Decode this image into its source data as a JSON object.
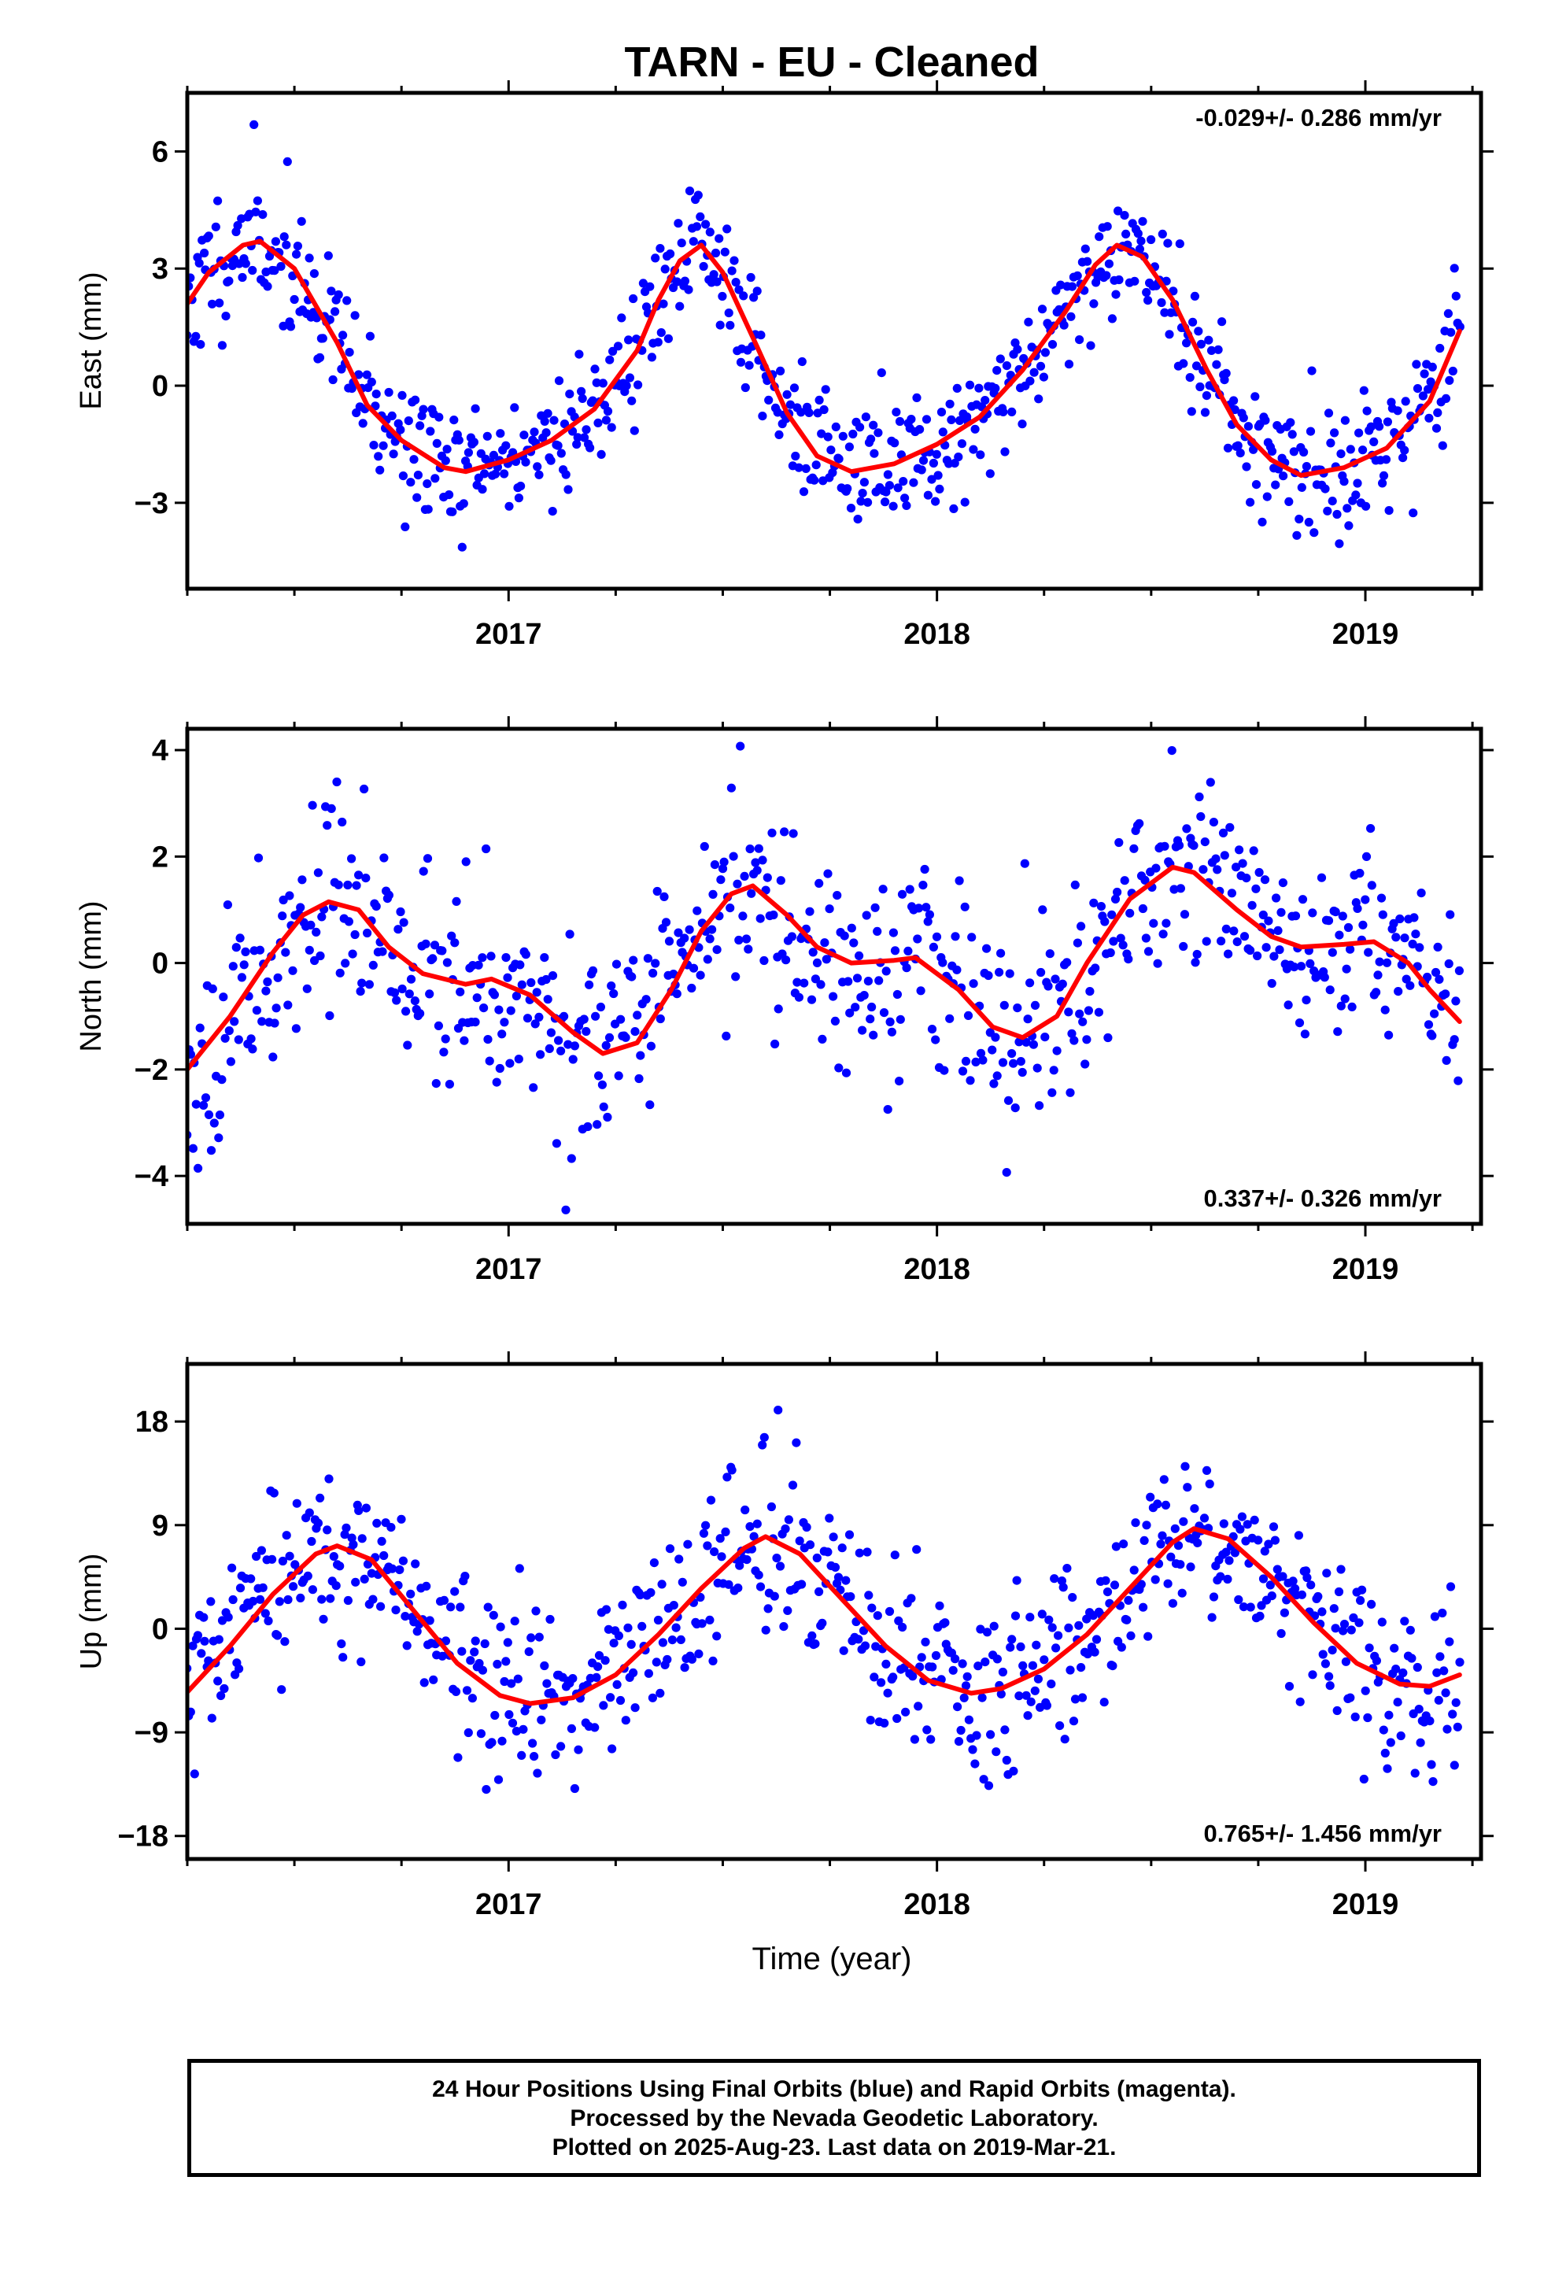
{
  "figure": {
    "title": "TARN  - EU - Cleaned",
    "xlabel": "Time (year)",
    "footer": [
      "24 Hour Positions Using Final Orbits (blue) and Rapid Orbits (magenta).",
      "Processed by the Nevada Geodetic Laboratory.",
      "Plotted on 2025-Aug-23. Last data on 2019-Mar-21."
    ],
    "colors": {
      "data": "#0000ff",
      "model": "#ff0000",
      "frame": "#000000"
    }
  },
  "chart_data": [
    {
      "type": "scatter",
      "title": "TARN  - EU - Cleaned",
      "ylabel": "East (mm)",
      "rate_text": "-0.029+/- 0.286 mm/yr",
      "rate_position": "top-right",
      "xlim": [
        2016.25,
        2019.27
      ],
      "ylim": [
        -5.2,
        7.5
      ],
      "x_ticks": [
        2017,
        2018,
        2019
      ],
      "x_ticklabels": [
        "2017",
        "2018",
        "2019"
      ],
      "y_ticks": [
        -3,
        0,
        3,
        6
      ],
      "y_ticklabels": [
        "−3",
        "0",
        "3",
        "6"
      ],
      "series": [
        {
          "kind": "points",
          "start": 2016.25,
          "end": 2019.22,
          "n": 760,
          "noise": 0.85,
          "offset": 0,
          "seed": 11
        },
        {
          "kind": "fit-line",
          "points": [
            [
              2016.25,
              2.1
            ],
            [
              2016.3,
              2.9
            ],
            [
              2016.38,
              3.6
            ],
            [
              2016.42,
              3.7
            ],
            [
              2016.5,
              3.0
            ],
            [
              2016.6,
              1.1
            ],
            [
              2016.67,
              -0.5
            ],
            [
              2016.75,
              -1.4
            ],
            [
              2016.85,
              -2.1
            ],
            [
              2016.9,
              -2.2
            ],
            [
              2017.0,
              -1.9
            ],
            [
              2017.1,
              -1.4
            ],
            [
              2017.2,
              -0.6
            ],
            [
              2017.3,
              0.9
            ],
            [
              2017.35,
              2.2
            ],
            [
              2017.4,
              3.2
            ],
            [
              2017.45,
              3.6
            ],
            [
              2017.5,
              2.9
            ],
            [
              2017.58,
              1.0
            ],
            [
              2017.65,
              -0.7
            ],
            [
              2017.72,
              -1.8
            ],
            [
              2017.8,
              -2.2
            ],
            [
              2017.9,
              -2.0
            ],
            [
              2018.0,
              -1.5
            ],
            [
              2018.1,
              -0.8
            ],
            [
              2018.2,
              0.4
            ],
            [
              2018.3,
              1.9
            ],
            [
              2018.37,
              3.1
            ],
            [
              2018.42,
              3.6
            ],
            [
              2018.48,
              3.3
            ],
            [
              2018.55,
              2.2
            ],
            [
              2018.63,
              0.4
            ],
            [
              2018.7,
              -1.0
            ],
            [
              2018.78,
              -1.9
            ],
            [
              2018.85,
              -2.3
            ],
            [
              2018.95,
              -2.1
            ],
            [
              2019.05,
              -1.6
            ],
            [
              2019.15,
              -0.4
            ],
            [
              2019.22,
              1.4
            ]
          ]
        }
      ]
    },
    {
      "type": "scatter",
      "ylabel": "North (mm)",
      "rate_text": "0.337+/- 0.326 mm/yr",
      "rate_position": "bottom-right",
      "xlim": [
        2016.25,
        2019.27
      ],
      "ylim": [
        -4.9,
        4.4
      ],
      "x_ticks": [
        2017,
        2018,
        2019
      ],
      "x_ticklabels": [
        "2017",
        "2018",
        "2019"
      ],
      "y_ticks": [
        -4,
        -2,
        0,
        2,
        4
      ],
      "y_ticklabels": [
        "−4",
        "−2",
        "0",
        "2",
        "4"
      ],
      "series": [
        {
          "kind": "points",
          "start": 2016.25,
          "end": 2019.22,
          "n": 700,
          "noise": 0.95,
          "offset": 0,
          "seed": 23
        },
        {
          "kind": "fit-line",
          "points": [
            [
              2016.25,
              -2.0
            ],
            [
              2016.35,
              -1.0
            ],
            [
              2016.45,
              0.2
            ],
            [
              2016.52,
              0.9
            ],
            [
              2016.58,
              1.15
            ],
            [
              2016.65,
              1.0
            ],
            [
              2016.72,
              0.3
            ],
            [
              2016.8,
              -0.2
            ],
            [
              2016.9,
              -0.4
            ],
            [
              2016.96,
              -0.3
            ],
            [
              2017.05,
              -0.6
            ],
            [
              2017.15,
              -1.3
            ],
            [
              2017.22,
              -1.7
            ],
            [
              2017.3,
              -1.5
            ],
            [
              2017.38,
              -0.5
            ],
            [
              2017.45,
              0.6
            ],
            [
              2017.52,
              1.3
            ],
            [
              2017.57,
              1.45
            ],
            [
              2017.65,
              0.9
            ],
            [
              2017.72,
              0.3
            ],
            [
              2017.8,
              0.0
            ],
            [
              2017.9,
              0.05
            ],
            [
              2017.95,
              0.1
            ],
            [
              2018.05,
              -0.5
            ],
            [
              2018.13,
              -1.2
            ],
            [
              2018.2,
              -1.4
            ],
            [
              2018.28,
              -1.0
            ],
            [
              2018.35,
              0.0
            ],
            [
              2018.45,
              1.2
            ],
            [
              2018.55,
              1.8
            ],
            [
              2018.6,
              1.7
            ],
            [
              2018.7,
              1.0
            ],
            [
              2018.78,
              0.5
            ],
            [
              2018.85,
              0.3
            ],
            [
              2018.95,
              0.35
            ],
            [
              2019.02,
              0.4
            ],
            [
              2019.1,
              0.0
            ],
            [
              2019.15,
              -0.5
            ],
            [
              2019.22,
              -1.1
            ]
          ]
        }
      ]
    },
    {
      "type": "scatter",
      "ylabel": "Up (mm)",
      "rate_text": "0.765+/- 1.456 mm/yr",
      "rate_position": "bottom-right",
      "xlim": [
        2016.25,
        2019.27
      ],
      "ylim": [
        -20,
        23
      ],
      "x_ticks": [
        2017,
        2018,
        2019
      ],
      "x_ticklabels": [
        "2017",
        "2018",
        "2019"
      ],
      "y_ticks": [
        -18,
        -9,
        0,
        9,
        18
      ],
      "y_ticklabels": [
        "−18",
        "−9",
        "0",
        "9",
        "18"
      ],
      "series": [
        {
          "kind": "points",
          "start": 2016.25,
          "end": 2019.22,
          "n": 720,
          "noise": 3.8,
          "offset": 0,
          "seed": 37
        },
        {
          "kind": "fit-line",
          "points": [
            [
              2016.25,
              -5.5
            ],
            [
              2016.35,
              -1.5
            ],
            [
              2016.45,
              3.0
            ],
            [
              2016.55,
              6.5
            ],
            [
              2016.6,
              7.2
            ],
            [
              2016.68,
              6.0
            ],
            [
              2016.78,
              1.5
            ],
            [
              2016.88,
              -3.0
            ],
            [
              2016.98,
              -5.8
            ],
            [
              2017.05,
              -6.5
            ],
            [
              2017.15,
              -6.0
            ],
            [
              2017.25,
              -4.0
            ],
            [
              2017.35,
              -0.5
            ],
            [
              2017.45,
              3.5
            ],
            [
              2017.55,
              7.0
            ],
            [
              2017.6,
              8.0
            ],
            [
              2017.68,
              6.5
            ],
            [
              2017.78,
              2.5
            ],
            [
              2017.88,
              -1.5
            ],
            [
              2017.98,
              -4.5
            ],
            [
              2018.08,
              -5.6
            ],
            [
              2018.15,
              -5.2
            ],
            [
              2018.25,
              -3.5
            ],
            [
              2018.35,
              -0.5
            ],
            [
              2018.45,
              3.5
            ],
            [
              2018.55,
              7.5
            ],
            [
              2018.6,
              8.7
            ],
            [
              2018.68,
              7.8
            ],
            [
              2018.78,
              4.5
            ],
            [
              2018.88,
              0.5
            ],
            [
              2018.98,
              -3.0
            ],
            [
              2019.08,
              -4.8
            ],
            [
              2019.15,
              -5.0
            ],
            [
              2019.22,
              -4.0
            ]
          ]
        }
      ]
    }
  ]
}
